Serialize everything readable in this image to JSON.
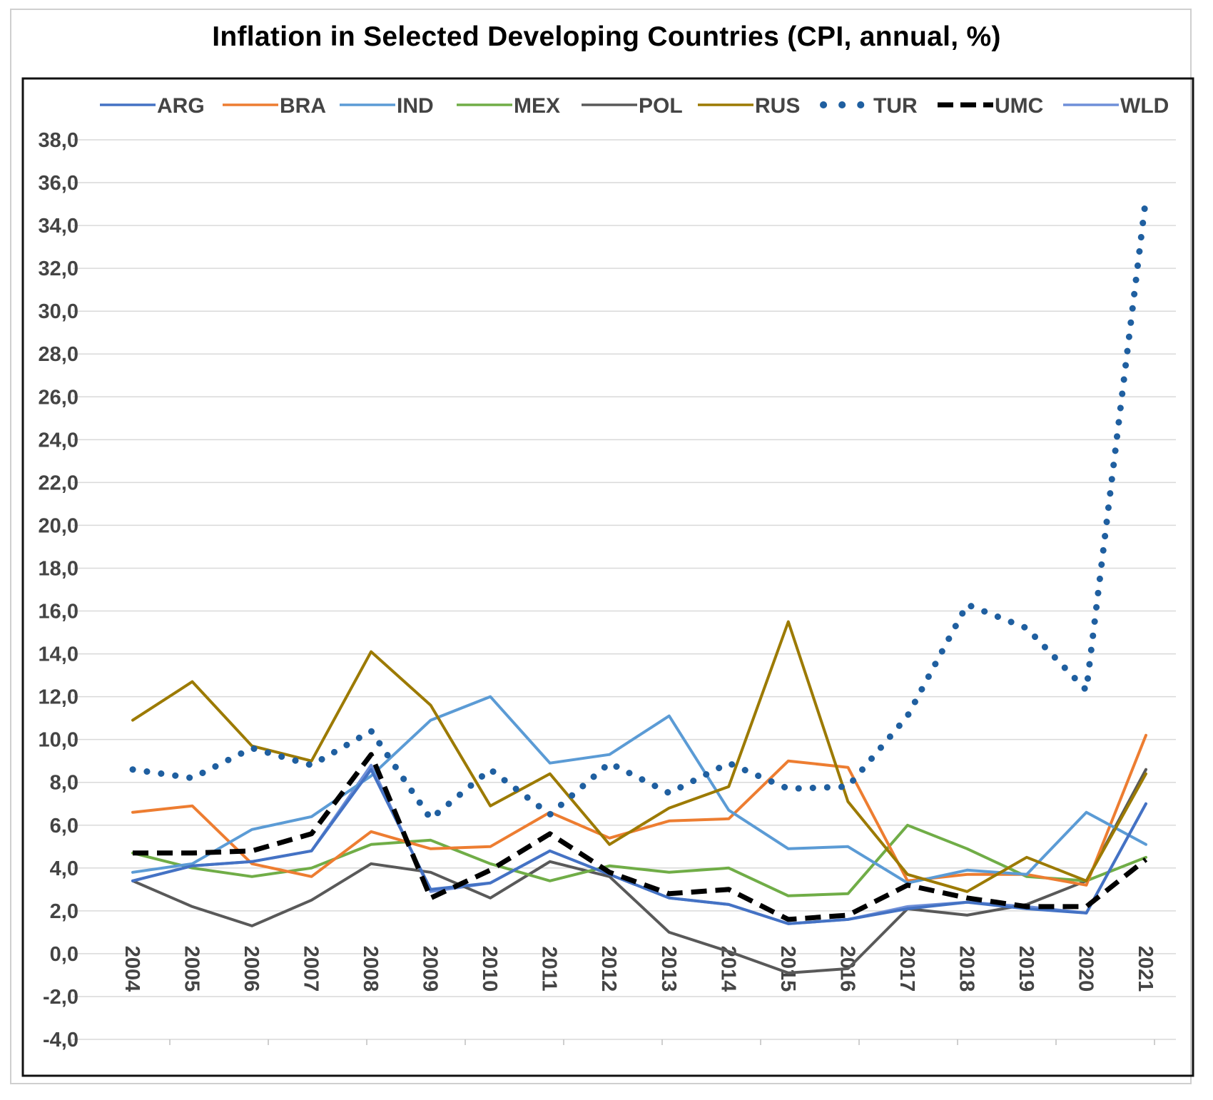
{
  "chart_data": {
    "type": "line",
    "title": "Inflation in Selected Developing Countries (CPI, annual, %)",
    "xlabel": "",
    "ylabel": "",
    "x": [
      "2004",
      "2005",
      "2006",
      "2007",
      "2008",
      "2009",
      "2010",
      "2011",
      "2012",
      "2013",
      "2014",
      "2015",
      "2016",
      "2017",
      "2018",
      "2019",
      "2020",
      "2021"
    ],
    "ylim": [
      -4,
      38
    ],
    "yticks": [
      "38,0",
      "36,0",
      "34,0",
      "32,0",
      "30,0",
      "28,0",
      "26,0",
      "24,0",
      "22,0",
      "20,0",
      "18,0",
      "16,0",
      "14,0",
      "12,0",
      "10,0",
      "8,0",
      "6,0",
      "4,0",
      "2,0",
      "0,0",
      "-2,0",
      "-4,0"
    ],
    "grid": true,
    "legend_position": "top",
    "series": [
      {
        "name": "ARG",
        "color": "#4472c4",
        "style": "solid",
        "values": [
          3.4,
          4.1,
          4.3,
          4.8,
          8.6,
          3.0,
          3.3,
          4.8,
          3.7,
          2.6,
          2.3,
          1.4,
          1.6,
          2.1,
          2.4,
          2.1,
          1.9,
          7.0
        ]
      },
      {
        "name": "BRA",
        "color": "#ed7d31",
        "style": "solid",
        "values": [
          6.6,
          6.9,
          4.2,
          3.6,
          5.7,
          4.9,
          5.0,
          6.6,
          5.4,
          6.2,
          6.3,
          9.0,
          8.7,
          3.4,
          3.7,
          3.7,
          3.2,
          10.2
        ]
      },
      {
        "name": "IND",
        "color": "#5b9bd5",
        "style": "solid",
        "values": [
          3.8,
          4.2,
          5.8,
          6.4,
          8.3,
          10.9,
          12.0,
          8.9,
          9.3,
          11.1,
          6.7,
          4.9,
          5.0,
          3.3,
          3.9,
          3.7,
          6.6,
          5.1
        ]
      },
      {
        "name": "MEX",
        "color": "#70ad47",
        "style": "solid",
        "values": [
          4.7,
          4.0,
          3.6,
          4.0,
          5.1,
          5.3,
          4.2,
          3.4,
          4.1,
          3.8,
          4.0,
          2.7,
          2.8,
          6.0,
          4.9,
          3.6,
          3.4,
          4.5
        ]
      },
      {
        "name": "POL",
        "color": "#595959",
        "style": "solid",
        "values": [
          3.4,
          2.2,
          1.3,
          2.5,
          4.2,
          3.8,
          2.6,
          4.3,
          3.6,
          1.0,
          0.1,
          -0.9,
          -0.7,
          2.1,
          1.8,
          2.3,
          3.4,
          8.6
        ]
      },
      {
        "name": "RUS",
        "color": "#9c7a00",
        "style": "solid",
        "values": [
          10.9,
          12.7,
          9.7,
          9.0,
          14.1,
          11.6,
          6.9,
          8.4,
          5.1,
          6.8,
          7.8,
          15.5,
          7.1,
          3.7,
          2.9,
          4.5,
          3.4,
          8.4
        ]
      },
      {
        "name": "TUR",
        "color": "#1f5fa0",
        "style": "dotted",
        "values": [
          8.6,
          8.2,
          9.6,
          8.8,
          10.4,
          6.3,
          8.6,
          6.5,
          8.9,
          7.5,
          8.9,
          7.7,
          7.8,
          11.1,
          16.3,
          15.2,
          12.3,
          35.3
        ]
      },
      {
        "name": "UMC",
        "color": "#000000",
        "style": "dashed",
        "values": [
          4.7,
          4.7,
          4.8,
          5.6,
          9.3,
          2.6,
          3.9,
          5.6,
          3.8,
          2.8,
          3.0,
          1.6,
          1.8,
          3.2,
          2.6,
          2.2,
          2.2,
          4.4
        ]
      },
      {
        "name": "WLD",
        "color": "#6f8fd8",
        "style": "solid",
        "values": [
          3.4,
          4.1,
          4.3,
          4.8,
          8.8,
          2.9,
          3.3,
          4.8,
          3.7,
          2.6,
          2.3,
          1.4,
          1.6,
          2.2,
          2.4,
          2.2,
          1.9,
          7.0
        ]
      }
    ]
  }
}
